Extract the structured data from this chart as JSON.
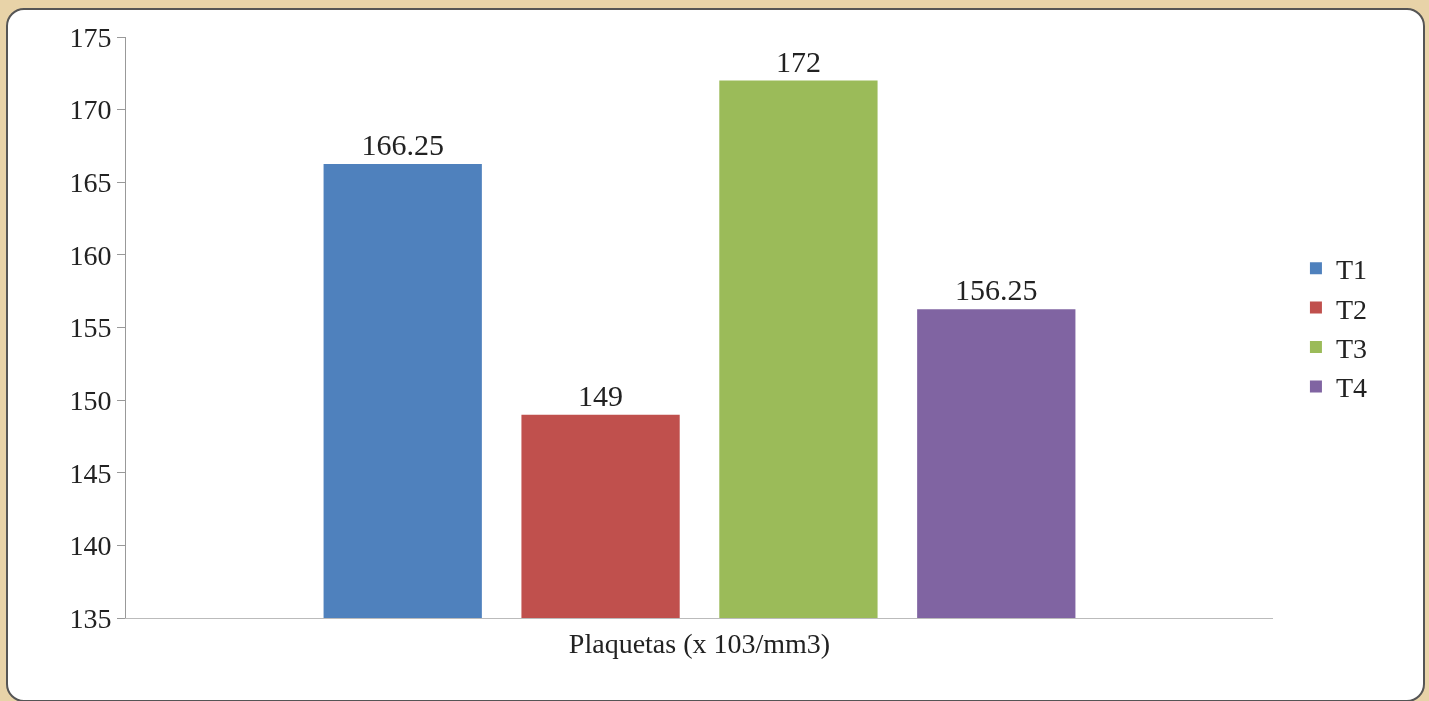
{
  "chart_data": {
    "type": "bar",
    "categories": [
      "Plaquetas (x 103/mm3)"
    ],
    "series": [
      {
        "name": "T1",
        "color": "#4f81bd",
        "values": [
          166.25
        ]
      },
      {
        "name": "T2",
        "color": "#c0504d",
        "values": [
          149
        ]
      },
      {
        "name": "T3",
        "color": "#9bbb59",
        "values": [
          172
        ]
      },
      {
        "name": "T4",
        "color": "#8064a2",
        "values": [
          156.25
        ]
      }
    ],
    "ylim": [
      135,
      175
    ],
    "yticks": [
      135,
      140,
      145,
      150,
      155,
      160,
      165,
      170,
      175
    ],
    "data_labels": true,
    "grid": false,
    "legend": "right"
  }
}
